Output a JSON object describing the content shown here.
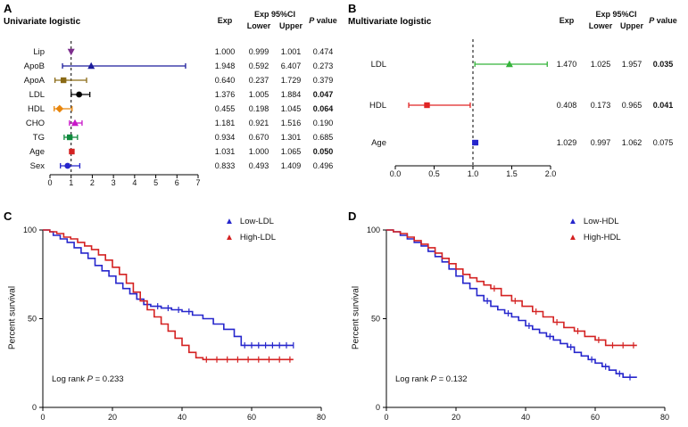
{
  "chart_data": [
    {
      "panel_letter": "A",
      "type": "forest",
      "title": "Univariate logistic",
      "headers": {
        "exp": "Exp",
        "ci": "Exp 95%CI",
        "lower": "Lower",
        "upper": "Upper",
        "p_italic": "P",
        "p_rest": " value"
      },
      "axis": {
        "min": 0,
        "max": 7,
        "ticks": [
          0,
          1,
          2,
          3,
          4,
          5,
          6,
          7
        ],
        "tick_labels": [
          "0",
          "1",
          "2",
          "3",
          "4",
          "5",
          "6",
          "7"
        ],
        "refline": 1
      },
      "rows": [
        {
          "label": "Lip",
          "exp": "1.000",
          "lower": "0.999",
          "upper": "1.001",
          "p": "0.474",
          "bold": false,
          "color": "#7d2e8d",
          "marker": "triangle-down"
        },
        {
          "label": "ApoB",
          "exp": "1.948",
          "lower": "0.592",
          "upper": "6.407",
          "p": "0.273",
          "bold": false,
          "color": "#1c1c9c",
          "marker": "triangle-up"
        },
        {
          "label": "ApoA",
          "exp": "0.640",
          "lower": "0.237",
          "upper": "1.729",
          "p": "0.379",
          "bold": false,
          "color": "#8a6a15",
          "marker": "square"
        },
        {
          "label": "LDL",
          "exp": "1.376",
          "lower": "1.005",
          "upper": "1.884",
          "p": "0.047",
          "bold": true,
          "color": "#000000",
          "marker": "circle"
        },
        {
          "label": "HDL",
          "exp": "0.455",
          "lower": "0.198",
          "upper": "1.045",
          "p": "0.064",
          "bold": true,
          "color": "#e8860d",
          "marker": "diamond"
        },
        {
          "label": "CHO",
          "exp": "1.181",
          "lower": "0.921",
          "upper": "1.516",
          "p": "0.190",
          "bold": false,
          "color": "#c818c8",
          "marker": "triangle-up"
        },
        {
          "label": "TG",
          "exp": "0.934",
          "lower": "0.670",
          "upper": "1.301",
          "p": "0.685",
          "bold": false,
          "color": "#0f8a3d",
          "marker": "square"
        },
        {
          "label": "Age",
          "exp": "1.031",
          "lower": "1.000",
          "upper": "1.065",
          "p": "0.050",
          "bold": true,
          "color": "#d42222",
          "marker": "square"
        },
        {
          "label": "Sex",
          "exp": "0.833",
          "lower": "0.493",
          "upper": "1.409",
          "p": "0.496",
          "bold": false,
          "color": "#2626cc",
          "marker": "circle"
        }
      ]
    },
    {
      "panel_letter": "B",
      "type": "forest",
      "title": "Multivariate logistic",
      "headers": {
        "exp": "Exp",
        "ci": "Exp 95%CI",
        "lower": "Lower",
        "upper": "Upper",
        "p_italic": "P",
        "p_rest": " value"
      },
      "axis": {
        "min": 0,
        "max": 2,
        "ticks": [
          0,
          0.5,
          1,
          1.5,
          2
        ],
        "tick_labels": [
          "0.0",
          "0.5",
          "1.0",
          "1.5",
          "2.0"
        ],
        "refline": 1
      },
      "rows": [
        {
          "label": "LDL",
          "exp": "1.470",
          "lower": "1.025",
          "upper": "1.957",
          "p": "0.035",
          "bold": true,
          "color": "#35b43b",
          "marker": "triangle-up"
        },
        {
          "label": "HDL",
          "exp": "0.408",
          "lower": "0.173",
          "upper": "0.965",
          "p": "0.041",
          "bold": true,
          "color": "#e02424",
          "marker": "square"
        },
        {
          "label": "Age",
          "exp": "1.029",
          "lower": "0.997",
          "upper": "1.062",
          "p": "0.075",
          "bold": false,
          "color": "#2626cc",
          "marker": "square"
        }
      ]
    },
    {
      "panel_letter": "C",
      "type": "km",
      "ylabel": "Percent survival",
      "xlim": [
        0,
        80
      ],
      "xticks": [
        0,
        20,
        40,
        60,
        80
      ],
      "xtick_labels": [
        "0",
        "20",
        "40",
        "60",
        "80"
      ],
      "ylim": [
        0,
        100
      ],
      "yticks": [
        0,
        50,
        100
      ],
      "ytick_labels": [
        "0",
        "50",
        "100"
      ],
      "legend": [
        {
          "name": "Low-LDL",
          "color": "#2626cc",
          "marker": "triangle-up"
        },
        {
          "name": "High-LDL",
          "color": "#d42222",
          "marker": "triangle-up"
        }
      ],
      "annotation": {
        "prefix": "Log rank ",
        "p": "P",
        "rest": " = 0.233"
      },
      "series": [
        {
          "name": "Low-LDL",
          "color": "#2626cc",
          "x": [
            0,
            2,
            3,
            5,
            7,
            9,
            11,
            13,
            15,
            17,
            19,
            21,
            23,
            25,
            27,
            29,
            31,
            34,
            37,
            40,
            43,
            46,
            49,
            52,
            55,
            57,
            72
          ],
          "y": [
            100,
            99,
            97,
            95,
            93,
            90,
            87,
            84,
            80,
            77,
            74,
            70,
            67,
            64,
            61,
            58,
            57,
            56,
            55,
            54,
            52,
            50,
            47,
            44,
            40,
            35,
            35
          ],
          "censors": [
            33,
            36,
            39,
            42,
            58,
            60,
            62,
            64,
            66,
            68,
            70,
            72
          ]
        },
        {
          "name": "High-LDL",
          "color": "#d42222",
          "x": [
            0,
            2,
            4,
            6,
            8,
            10,
            12,
            14,
            16,
            18,
            20,
            22,
            24,
            26,
            28,
            30,
            32,
            34,
            36,
            38,
            40,
            42,
            44,
            46,
            72
          ],
          "y": [
            100,
            99,
            98,
            96,
            95,
            93,
            91,
            89,
            86,
            83,
            79,
            75,
            70,
            65,
            60,
            55,
            51,
            47,
            43,
            39,
            35,
            31,
            28,
            27,
            27
          ],
          "censors": [
            47,
            50,
            53,
            56,
            59,
            62,
            65,
            68,
            71
          ]
        }
      ]
    },
    {
      "panel_letter": "D",
      "type": "km",
      "ylabel": "Percent survival",
      "xlim": [
        0,
        80
      ],
      "xticks": [
        0,
        20,
        40,
        60,
        80
      ],
      "xtick_labels": [
        "0",
        "20",
        "40",
        "60",
        "80"
      ],
      "ylim": [
        0,
        100
      ],
      "yticks": [
        0,
        50,
        100
      ],
      "ytick_labels": [
        "0",
        "50",
        "100"
      ],
      "legend": [
        {
          "name": "Low-HDL",
          "color": "#2626cc",
          "marker": "triangle-up"
        },
        {
          "name": "High-HDL",
          "color": "#d42222",
          "marker": "triangle-up"
        }
      ],
      "annotation": {
        "prefix": "Log rank ",
        "p": "P",
        "rest": " = 0.132"
      },
      "series": [
        {
          "name": "Low-HDL",
          "color": "#2626cc",
          "x": [
            0,
            2,
            4,
            6,
            8,
            10,
            12,
            14,
            16,
            18,
            20,
            22,
            24,
            26,
            28,
            30,
            32,
            34,
            36,
            38,
            40,
            42,
            44,
            46,
            48,
            50,
            52,
            54,
            56,
            58,
            60,
            62,
            64,
            66,
            68,
            72
          ],
          "y": [
            100,
            99,
            97,
            95,
            93,
            91,
            88,
            85,
            82,
            78,
            74,
            70,
            67,
            63,
            60,
            57,
            55,
            53,
            51,
            49,
            46,
            44,
            42,
            40,
            38,
            36,
            34,
            31,
            29,
            27,
            25,
            23,
            21,
            19,
            17,
            17
          ],
          "censors": [
            29,
            35,
            41,
            47,
            53,
            59,
            63,
            67,
            70
          ]
        },
        {
          "name": "High-HDL",
          "color": "#d42222",
          "x": [
            0,
            2,
            4,
            6,
            8,
            10,
            12,
            14,
            16,
            18,
            20,
            22,
            24,
            26,
            28,
            30,
            33,
            36,
            39,
            42,
            45,
            48,
            51,
            54,
            57,
            60,
            63,
            72
          ],
          "y": [
            100,
            99,
            98,
            96,
            94,
            92,
            90,
            87,
            84,
            81,
            78,
            75,
            73,
            71,
            69,
            67,
            63,
            60,
            57,
            54,
            51,
            48,
            45,
            43,
            40,
            38,
            35,
            35
          ],
          "censors": [
            31,
            37,
            43,
            49,
            55,
            61,
            65,
            68,
            71
          ]
        }
      ]
    }
  ]
}
